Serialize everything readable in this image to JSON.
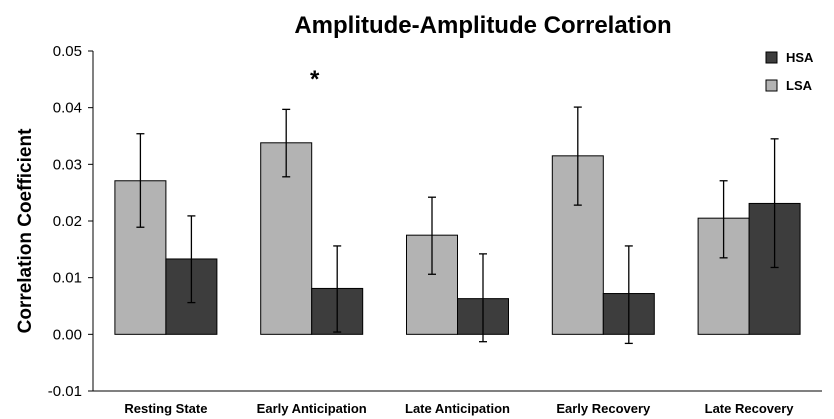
{
  "chart_data": {
    "type": "bar",
    "title": "Amplitude-Amplitude Correlation",
    "xlabel": "",
    "ylabel": "Correlation Coefficient",
    "ylim": [
      -0.01,
      0.05
    ],
    "yticks": [
      "0.05",
      "0.04",
      "0.03",
      "0.02",
      "0.01",
      "0.00",
      "-0.01"
    ],
    "ytick_values": [
      0.05,
      0.04,
      0.03,
      0.02,
      0.01,
      0.0,
      -0.01
    ],
    "categories": [
      "Resting State",
      "Early Anticipation",
      "Late Anticipation",
      "Early Recovery",
      "Late Recovery"
    ],
    "series": [
      {
        "name": "LSA",
        "color": "#b3b3b3",
        "values": [
          0.0271,
          0.0338,
          0.0175,
          0.0315,
          0.0205
        ],
        "err_low": [
          0.0189,
          0.0278,
          0.0106,
          0.0228,
          0.0135
        ],
        "err_high": [
          0.0354,
          0.0397,
          0.0242,
          0.0401,
          0.0271
        ]
      },
      {
        "name": "HSA",
        "color": "#3d3d3d",
        "values": [
          0.0133,
          0.0081,
          0.0063,
          0.0072,
          0.0231
        ],
        "err_low": [
          0.0056,
          0.0004,
          -0.0013,
          -0.0016,
          0.0118
        ],
        "err_high": [
          0.0209,
          0.0156,
          0.0142,
          0.0156,
          0.0345
        ]
      }
    ],
    "legend": {
      "position": "top-right",
      "order": [
        "HSA",
        "LSA"
      ]
    },
    "annotations": [
      {
        "text": "*",
        "category": "Early Anticipation"
      }
    ],
    "grid": false
  }
}
